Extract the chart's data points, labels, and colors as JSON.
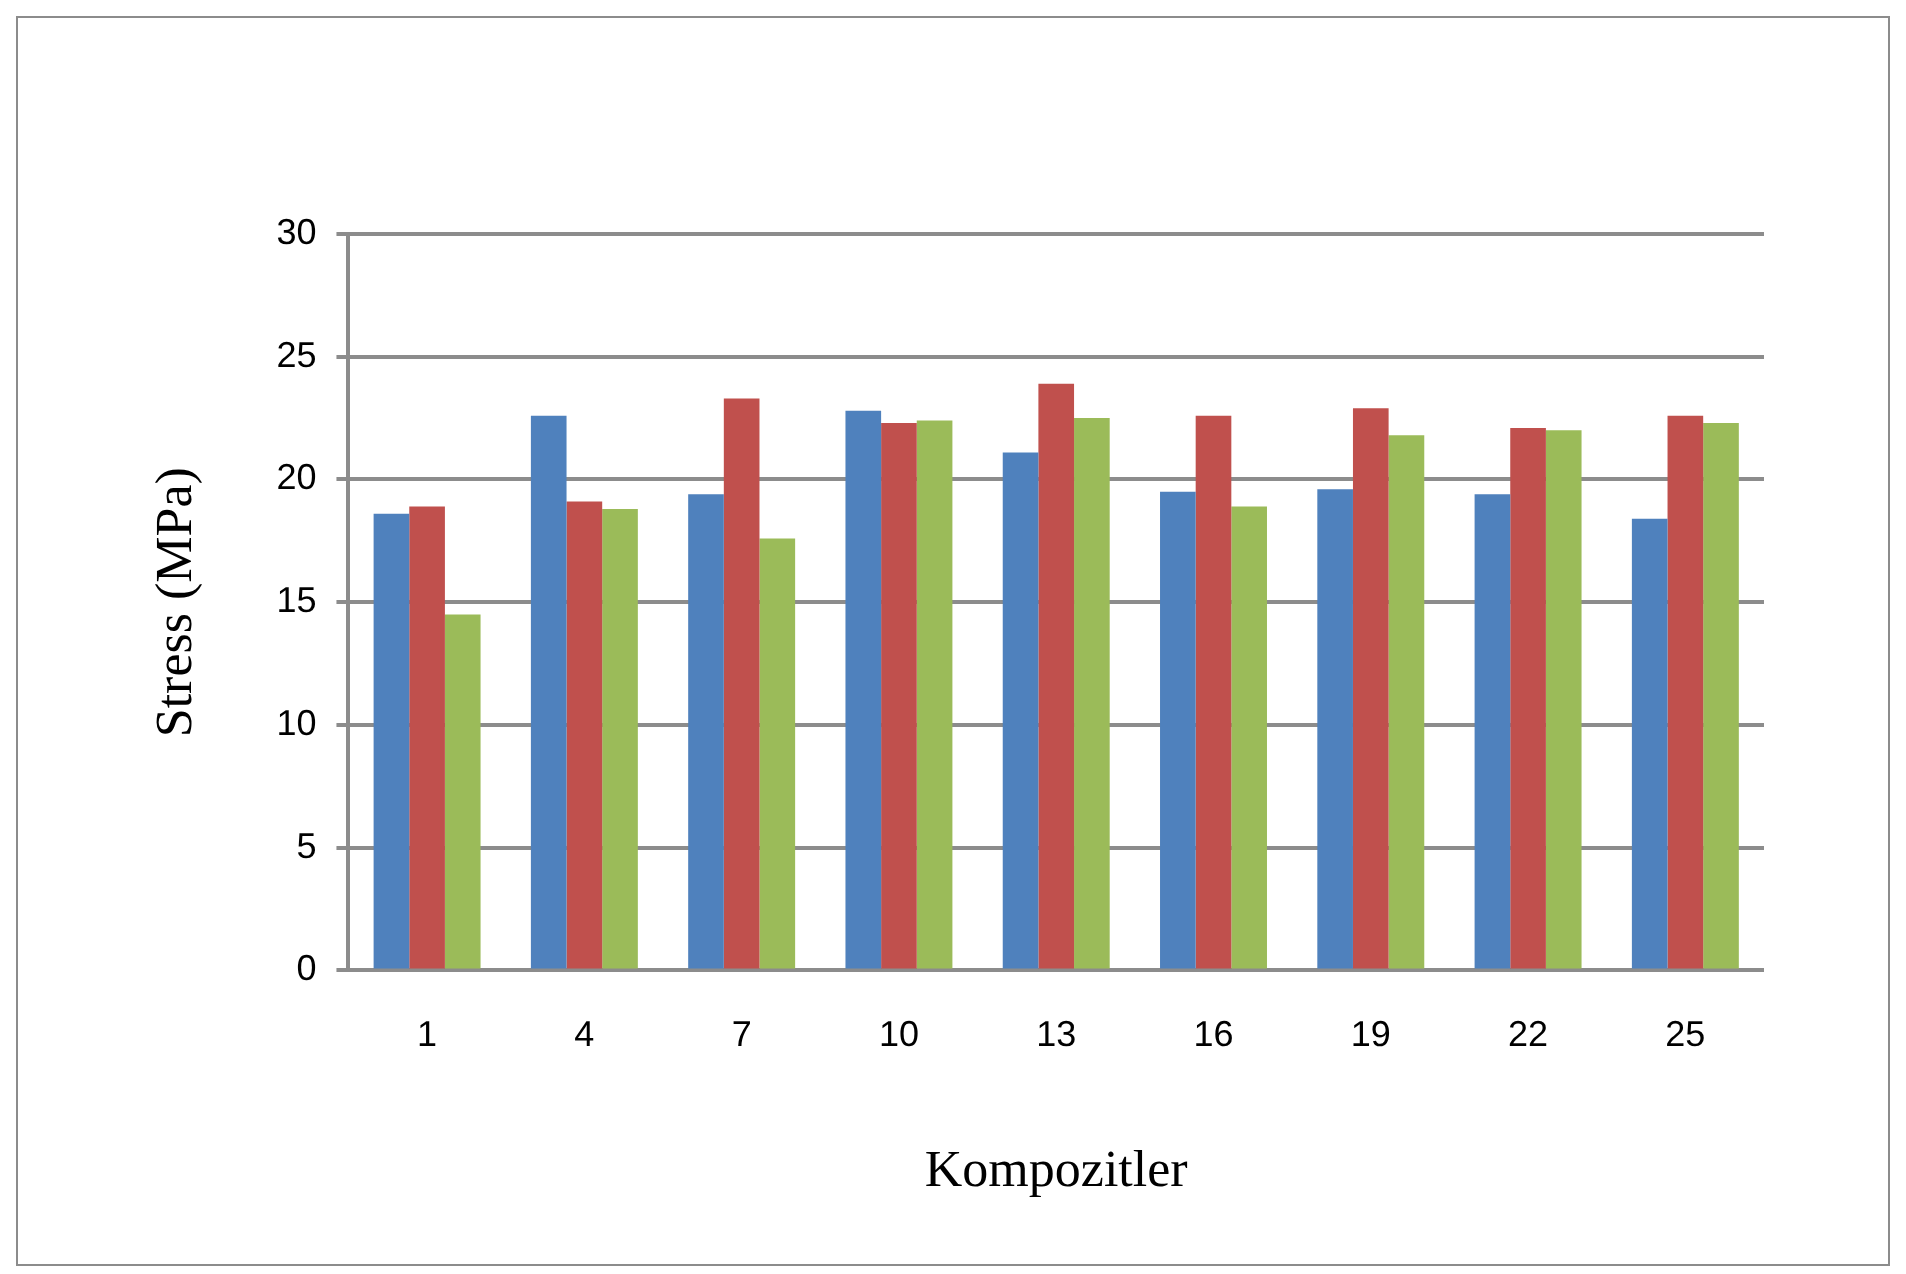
{
  "chart_data": {
    "type": "bar",
    "xlabel": "Kompozitler",
    "ylabel": "Stress (MPa)",
    "categories": [
      "1",
      "4",
      "7",
      "10",
      "13",
      "16",
      "19",
      "22",
      "25"
    ],
    "series": [
      {
        "color": "#4f81bd",
        "values": [
          18.6,
          22.6,
          19.4,
          22.8,
          21.1,
          19.5,
          19.6,
          19.4,
          18.4
        ]
      },
      {
        "color": "#c0504d",
        "values": [
          18.9,
          19.1,
          23.3,
          22.3,
          23.9,
          22.6,
          22.9,
          22.1,
          22.6
        ]
      },
      {
        "color": "#9bbb59",
        "values": [
          14.5,
          18.8,
          17.6,
          22.4,
          22.5,
          18.9,
          21.8,
          22.0,
          22.3
        ]
      }
    ],
    "ylim": [
      0,
      30
    ],
    "yticks": [
      0,
      5,
      10,
      15,
      20,
      25,
      30
    ],
    "grid": "y",
    "legend": false
  }
}
